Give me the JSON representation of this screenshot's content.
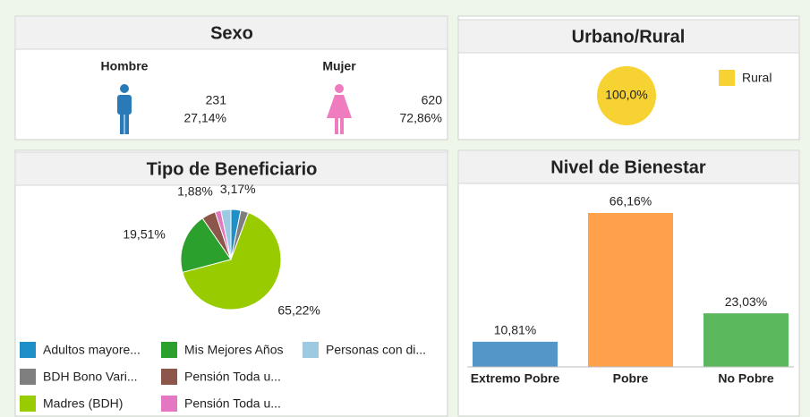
{
  "sexo": {
    "title": "Sexo",
    "hombre": {
      "label": "Hombre",
      "count": 231,
      "percent": "27,14%"
    },
    "mujer": {
      "label": "Mujer",
      "count": 620,
      "percent": "72,86%"
    }
  },
  "chart_data": [
    {
      "type": "pie",
      "title": "Urbano/Rural",
      "categories": [
        "Rural"
      ],
      "values": [
        100
      ],
      "value_labels": [
        "100,0%"
      ],
      "colors": [
        "#f6d232"
      ]
    },
    {
      "type": "pie",
      "title": "Tipo de Beneficiario",
      "categories": [
        "Adultos mayore...",
        "BDH Bono Vari...",
        "Madres (BDH)",
        "Mis Mejores Años",
        "Pensión Toda u...",
        "Pensión Toda u...",
        "Personas con di..."
      ],
      "values": [
        3.17,
        2.5,
        65.22,
        19.51,
        4.5,
        1.88,
        3.22
      ],
      "value_labels": [
        "3,17%",
        null,
        "65,22%",
        "19,51%",
        null,
        "1,88%",
        null
      ],
      "colors": [
        "#1f8fc8",
        "#7f7f7f",
        "#99cc00",
        "#2ca02c",
        "#8c564b",
        "#e377c2",
        "#9ecae1"
      ]
    },
    {
      "type": "bar",
      "title": "Nivel de Bienestar",
      "categories": [
        "Extremo Pobre",
        "Pobre",
        "No Pobre"
      ],
      "values": [
        10.81,
        66.16,
        23.03
      ],
      "value_labels": [
        "10,81%",
        "66,16%",
        "23,03%"
      ],
      "colors": [
        "#5596c9",
        "#ffa04a",
        "#5cb85c"
      ]
    }
  ]
}
